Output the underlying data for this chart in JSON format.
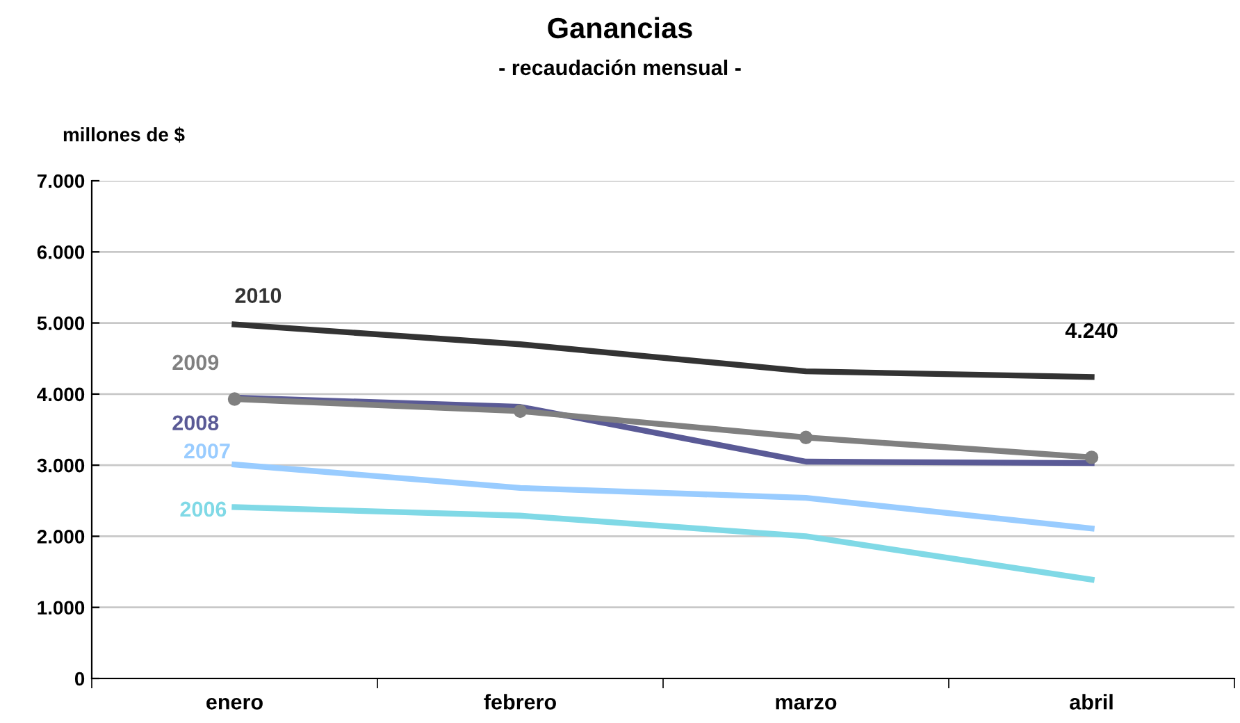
{
  "chart_data": {
    "type": "line",
    "title": "Ganancias",
    "subtitle": "- recaudación mensual -",
    "ylabel": "millones de $",
    "categories": [
      "enero",
      "febrero",
      "marzo",
      "abril"
    ],
    "series": [
      {
        "name": "2010",
        "color": "#333333",
        "values": [
          4980,
          4700,
          4320,
          4240
        ],
        "value_labels": [
          null,
          null,
          null,
          "4.240"
        ]
      },
      {
        "name": "2009",
        "color": "#808080",
        "values": [
          3930,
          3760,
          3390,
          3110
        ],
        "marker": "circle"
      },
      {
        "name": "2008",
        "color": "#5a5a96",
        "values": [
          3950,
          3820,
          3050,
          3030
        ]
      },
      {
        "name": "2007",
        "color": "#99ccff",
        "values": [
          3010,
          2680,
          2540,
          2110
        ]
      },
      {
        "name": "2006",
        "color": "#80d9e6",
        "values": [
          2410,
          2290,
          2000,
          1390
        ]
      }
    ],
    "ylim": [
      0,
      7000
    ],
    "yticks": [
      {
        "value": 0,
        "label": "0"
      },
      {
        "value": 1000,
        "label": "1.000"
      },
      {
        "value": 2000,
        "label": "2.000"
      },
      {
        "value": 3000,
        "label": "3.000"
      },
      {
        "value": 4000,
        "label": "4.000"
      },
      {
        "value": 5000,
        "label": "5.000"
      },
      {
        "value": 6000,
        "label": "6.000"
      },
      {
        "value": 7000,
        "label": "7.000"
      }
    ],
    "grid": "y",
    "legend": false
  }
}
